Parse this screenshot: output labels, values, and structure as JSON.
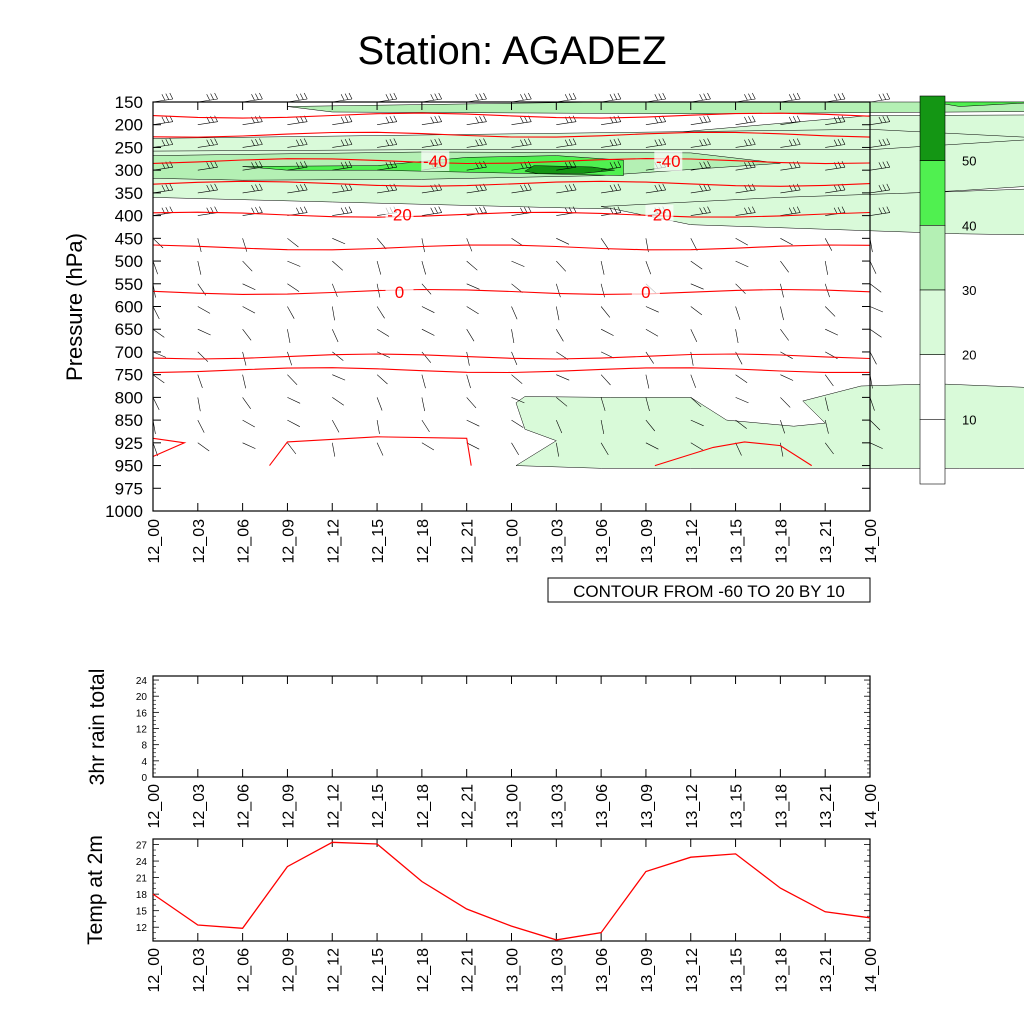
{
  "title": "Station: AGADEZ",
  "colors": {
    "temp_contour": "#ff0000",
    "wind_contour": "#000000",
    "shade": [
      "#ffffff",
      "#ffffff",
      "#d9fad9",
      "#b4f0b4",
      "#50f050",
      "#149614"
    ],
    "temp_line": "#ff0000"
  },
  "time_labels": [
    "12_00",
    "12_03",
    "12_06",
    "12_09",
    "12_12",
    "12_15",
    "12_18",
    "12_21",
    "13_00",
    "13_03",
    "13_06",
    "13_09",
    "13_12",
    "13_15",
    "13_18",
    "13_21",
    "14_00"
  ],
  "chart_data": [
    {
      "type": "heatmap",
      "name": "cross-section",
      "ylabel": "Pressure (hPa)",
      "y_ticks": [
        150,
        200,
        250,
        300,
        350,
        400,
        450,
        500,
        550,
        600,
        650,
        700,
        750,
        800,
        850,
        925,
        950,
        975,
        1000
      ],
      "ylim": [
        1000,
        150
      ],
      "shading_field": "wind speed",
      "shade_levels": [
        10,
        20,
        30,
        40,
        50
      ],
      "colorbar_labels": [
        "10",
        "20",
        "30",
        "40",
        "50"
      ],
      "temperature_contours": [
        {
          "label": "-40",
          "pressure": 280
        },
        {
          "label": "-20",
          "pressure": 398
        },
        {
          "label": "0",
          "pressure": 568
        }
      ],
      "contour_info": "CONTOUR FROM -60 TO 20 BY 10",
      "regions": [
        {
          "level": 20,
          "polygon": [
            [
              0,
              253
            ],
            [
              8,
              248
            ],
            [
              16,
              180
            ],
            [
              21,
              178
            ],
            [
              22,
              320
            ],
            [
              18,
              345
            ],
            [
              10,
              385
            ],
            [
              4,
              370
            ],
            [
              0,
              360
            ]
          ]
        },
        {
          "level": 20,
          "polygon": [
            [
              10,
              380
            ],
            [
              14,
              360
            ],
            [
              20,
              340
            ],
            [
              26,
              365
            ],
            [
              34,
              380
            ],
            [
              40,
              395
            ],
            [
              38,
              450
            ],
            [
              28,
              455
            ],
            [
              18,
              440
            ],
            [
              12,
              420
            ]
          ]
        },
        {
          "level": 20,
          "polygon": [
            [
              0,
              230
            ],
            [
              16,
              210
            ],
            [
              20,
              230
            ],
            [
              16,
              255
            ],
            [
              6,
              255
            ],
            [
              0,
              258
            ]
          ]
        },
        {
          "level": 30,
          "polygon": [
            [
              0,
              268
            ],
            [
              6,
              260
            ],
            [
              12,
              262
            ],
            [
              14,
              285
            ],
            [
              10,
              312
            ],
            [
              6,
              320
            ],
            [
              2,
              322
            ],
            [
              0,
              318
            ]
          ]
        },
        {
          "level": 30,
          "polygon": [
            [
              3,
              160
            ],
            [
              10,
              150
            ],
            [
              20,
              150
            ],
            [
              21,
              170
            ],
            [
              12,
              176
            ],
            [
              4,
              172
            ]
          ]
        },
        {
          "level": 40,
          "polygon": [
            [
              2,
              292
            ],
            [
              5,
              290
            ],
            [
              7,
              272
            ],
            [
              9,
              268
            ],
            [
              10.5,
              278
            ],
            [
              10.5,
              312
            ],
            [
              5,
              300
            ],
            [
              3,
              300
            ]
          ]
        },
        {
          "level": 40,
          "polygon": [
            [
              17.4,
              150
            ],
            [
              18,
              160
            ],
            [
              19.3,
              153
            ],
            [
              20,
              150
            ]
          ]
        },
        {
          "level": 50,
          "polygon": [
            [
              8.5,
              290
            ],
            [
              9.8,
              293
            ],
            [
              10.3,
              300
            ],
            [
              9.6,
              307
            ],
            [
              8.6,
              308
            ],
            [
              8.3,
              302
            ]
          ]
        },
        {
          "level": 20,
          "polygon": [
            [
              8.1,
              950
            ],
            [
              9,
              918
            ],
            [
              8.3,
              880
            ],
            [
              8.1,
              812
            ],
            [
              8.3,
              798
            ],
            [
              10.2,
              800
            ],
            [
              12,
              800
            ],
            [
              12.8,
              850
            ],
            [
              14.3,
              870
            ],
            [
              15,
              860
            ],
            [
              14.5,
              808
            ],
            [
              15.8,
              775
            ],
            [
              17.5,
              770
            ],
            [
              20,
              780
            ],
            [
              21,
              835
            ],
            [
              22,
              880
            ],
            [
              22,
              953
            ],
            [
              18,
              953
            ],
            [
              12,
              953
            ],
            [
              10,
              953
            ]
          ]
        }
      ]
    },
    {
      "type": "bar",
      "name": "3hr rain total",
      "ylabel": "3hr rain total",
      "y_ticks": [
        0,
        4,
        8,
        12,
        16,
        20,
        24
      ],
      "ylim": [
        0,
        25
      ],
      "values": [
        0,
        0,
        0,
        0,
        0,
        0,
        0,
        0,
        0,
        0,
        0,
        0,
        0,
        0,
        0,
        0,
        0
      ]
    },
    {
      "type": "line",
      "name": "Temp at 2m",
      "ylabel": "Temp at 2m",
      "y_ticks": [
        12,
        15,
        18,
        21,
        24,
        27
      ],
      "ylim": [
        9.5,
        28
      ],
      "x_index": [
        0,
        1,
        2,
        3,
        4,
        5,
        6,
        7,
        8,
        9,
        10,
        11,
        12,
        13,
        14,
        15,
        16
      ],
      "values": [
        18.0,
        12.4,
        11.8,
        23.0,
        27.4,
        27.1,
        20.3,
        15.3,
        12.2,
        9.7,
        11.0,
        22.1,
        24.7,
        25.3,
        19.1,
        14.8,
        13.7
      ]
    }
  ]
}
